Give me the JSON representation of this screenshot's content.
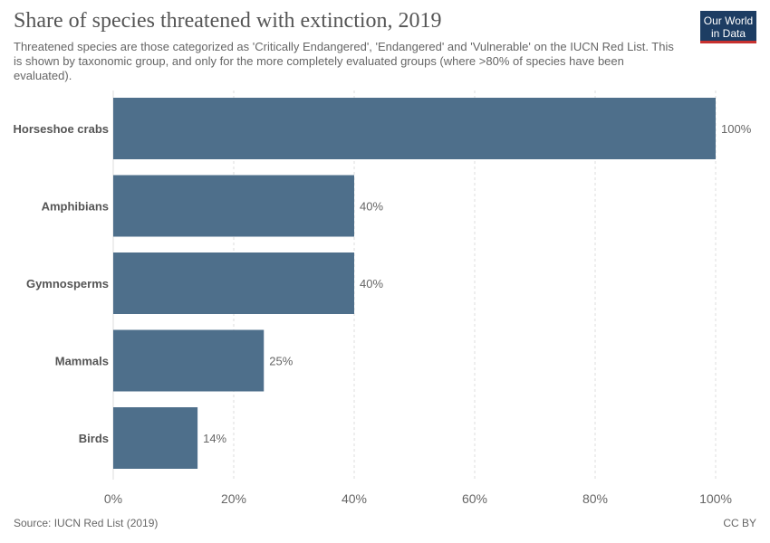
{
  "title": "Share of species threatened with extinction, 2019",
  "subtitle": "Threatened species are those categorized as 'Critically Endangered', 'Endangered' and 'Vulnerable' on the IUCN Red List. This is shown by taxonomic group, and only for the more completely evaluated groups (where >80% of species have been evaluated).",
  "logo": {
    "line1": "Our World",
    "line2": "in Data"
  },
  "footer": {
    "source": "Source: IUCN Red List (2019)",
    "license": "CC BY"
  },
  "colors": {
    "bar": "#4e6f8b",
    "grid": "#dddddd"
  },
  "chart_data": {
    "type": "bar",
    "orientation": "horizontal",
    "categories": [
      "Horseshoe crabs",
      "Amphibians",
      "Gymnosperms",
      "Mammals",
      "Birds"
    ],
    "values": [
      100,
      40,
      40,
      25,
      14
    ],
    "value_labels": [
      "100%",
      "40%",
      "40%",
      "25%",
      "14%"
    ],
    "xlim": [
      0,
      100
    ],
    "xticks": [
      0,
      20,
      40,
      60,
      80,
      100
    ],
    "xtick_labels": [
      "0%",
      "20%",
      "40%",
      "60%",
      "80%",
      "100%"
    ],
    "grid": true
  }
}
